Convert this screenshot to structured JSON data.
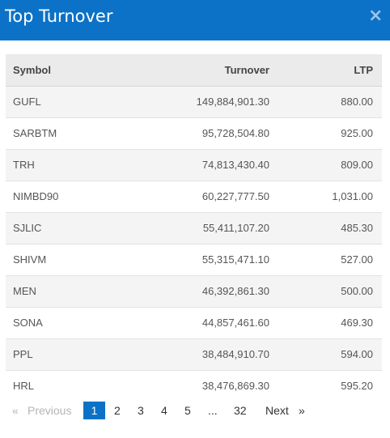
{
  "modal": {
    "title": "Top Turnover",
    "close_symbol": "×"
  },
  "table": {
    "headers": {
      "symbol": "Symbol",
      "turnover": "Turnover",
      "ltp": "LTP"
    },
    "rows": [
      {
        "symbol": "GUFL",
        "turnover": "149,884,901.30",
        "ltp": "880.00"
      },
      {
        "symbol": "SARBTM",
        "turnover": "95,728,504.80",
        "ltp": "925.00"
      },
      {
        "symbol": "TRH",
        "turnover": "74,813,430.40",
        "ltp": "809.00"
      },
      {
        "symbol": "NIMBD90",
        "turnover": "60,227,777.50",
        "ltp": "1,031.00"
      },
      {
        "symbol": "SJLIC",
        "turnover": "55,411,107.20",
        "ltp": "485.30"
      },
      {
        "symbol": "SHIVM",
        "turnover": "55,315,471.10",
        "ltp": "527.00"
      },
      {
        "symbol": "MEN",
        "turnover": "46,392,861.30",
        "ltp": "500.00"
      },
      {
        "symbol": "SONA",
        "turnover": "44,857,461.60",
        "ltp": "469.30"
      },
      {
        "symbol": "PPL",
        "turnover": "38,484,910.70",
        "ltp": "594.00"
      },
      {
        "symbol": "HRL",
        "turnover": "38,476,869.30",
        "ltp": "595.20"
      }
    ]
  },
  "pagination": {
    "prev_arrow": "«",
    "previous": "Previous",
    "pages": [
      "1",
      "2",
      "3",
      "4",
      "5"
    ],
    "ellipsis": "...",
    "last_page": "32",
    "next": "Next",
    "next_arrow": "»",
    "current_page": "1"
  },
  "colors": {
    "header_bg": "#0b72c7",
    "active_page_bg": "#0b72c7"
  }
}
